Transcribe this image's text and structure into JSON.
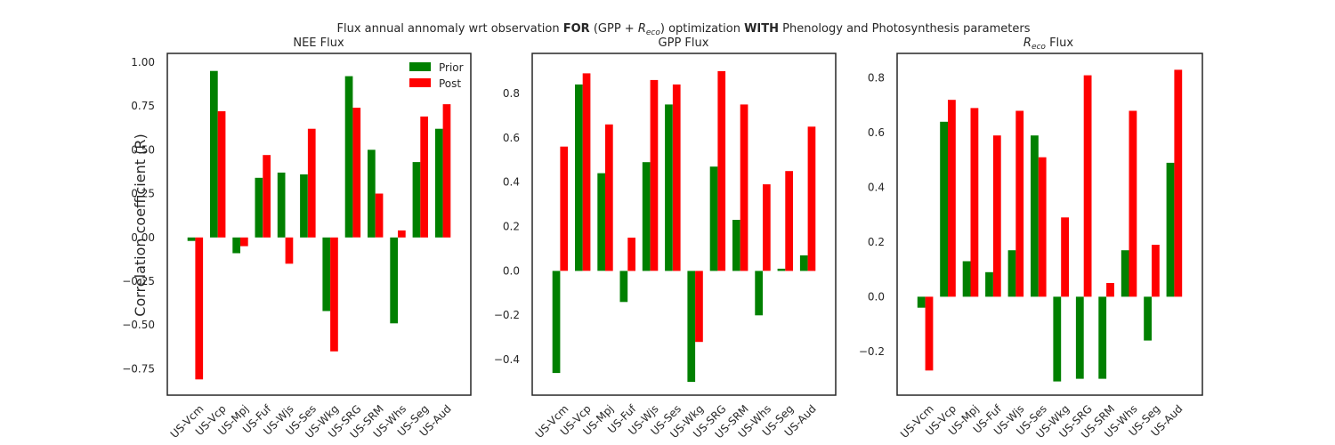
{
  "figure": {
    "suptitle_prefix": "Flux annual annomaly wrt observation ",
    "suptitle_bold1": "FOR",
    "suptitle_mid1": " (GPP + ",
    "suptitle_reco_base": "R",
    "suptitle_reco_sub": "eco",
    "suptitle_mid2": ") optimization ",
    "suptitle_bold2": "WITH",
    "suptitle_suffix": " Phenology and Photosynthesis parameters",
    "ylabel": "Correlation coefficient (R)"
  },
  "colors": {
    "prior": "#008000",
    "post": "#ff0000",
    "axes": "#262626"
  },
  "legend": {
    "placement": "top-right",
    "entries": [
      "Prior",
      "Post"
    ]
  },
  "chart_data": [
    {
      "type": "bar",
      "title": "NEE Flux",
      "categories": [
        "US-Vcm",
        "US-Vcp",
        "US-Mpj",
        "US-Fuf",
        "US-Wjs",
        "US-Ses",
        "US-Wkg",
        "US-SRG",
        "US-SRM",
        "US-Whs",
        "US-Seg",
        "US-Aud"
      ],
      "series": [
        {
          "name": "Prior",
          "values": [
            -0.02,
            0.95,
            -0.09,
            0.34,
            0.37,
            0.36,
            -0.42,
            0.92,
            0.5,
            -0.49,
            0.43,
            0.62
          ]
        },
        {
          "name": "Post",
          "values": [
            -0.81,
            0.72,
            -0.05,
            0.47,
            -0.15,
            0.62,
            -0.65,
            0.74,
            0.25,
            0.04,
            0.69,
            0.76
          ]
        }
      ],
      "ylim": [
        -0.9,
        1.05
      ],
      "yticks": [
        "1.00",
        "0.75",
        "0.50",
        "0.25",
        "0.00",
        "−0.25",
        "−0.50",
        "−0.75"
      ],
      "ytick_values": [
        1.0,
        0.75,
        0.5,
        0.25,
        0.0,
        -0.25,
        -0.5,
        -0.75
      ],
      "grid": false
    },
    {
      "type": "bar",
      "title": "GPP Flux",
      "categories": [
        "US-Vcm",
        "US-Vcp",
        "US-Mpj",
        "US-Fuf",
        "US-Wjs",
        "US-Ses",
        "US-Wkg",
        "US-SRG",
        "US-SRM",
        "US-Whs",
        "US-Seg",
        "US-Aud"
      ],
      "series": [
        {
          "name": "Prior",
          "values": [
            -0.46,
            0.84,
            0.44,
            -0.14,
            0.49,
            0.75,
            -0.5,
            0.47,
            0.23,
            -0.2,
            0.01,
            0.07
          ]
        },
        {
          "name": "Post",
          "values": [
            0.56,
            0.89,
            0.66,
            0.15,
            0.86,
            0.84,
            -0.32,
            0.9,
            0.75,
            0.39,
            0.45,
            0.65
          ]
        }
      ],
      "ylim": [
        -0.56,
        0.98
      ],
      "yticks": [
        "0.8",
        "0.6",
        "0.4",
        "0.2",
        "0.0",
        "−0.2",
        "−0.4"
      ],
      "ytick_values": [
        0.8,
        0.6,
        0.4,
        0.2,
        0.0,
        -0.2,
        -0.4
      ],
      "grid": false
    },
    {
      "type": "bar",
      "title_base": "R",
      "title_sub": "eco",
      "title_suffix": " Flux",
      "categories": [
        "US-Vcm",
        "US-Vcp",
        "US-Mpj",
        "US-Fuf",
        "US-Wjs",
        "US-Ses",
        "US-Wkg",
        "US-SRG",
        "US-SRM",
        "US-Whs",
        "US-Seg",
        "US-Aud"
      ],
      "series": [
        {
          "name": "Prior",
          "values": [
            -0.04,
            0.64,
            0.13,
            0.09,
            0.17,
            0.59,
            -0.31,
            -0.3,
            -0.3,
            0.17,
            -0.16,
            0.49
          ]
        },
        {
          "name": "Post",
          "values": [
            -0.27,
            0.72,
            0.69,
            0.59,
            0.68,
            0.51,
            0.29,
            0.81,
            0.05,
            0.68,
            0.19,
            0.83
          ]
        }
      ],
      "ylim": [
        -0.36,
        0.89
      ],
      "yticks": [
        "0.8",
        "0.6",
        "0.4",
        "0.2",
        "0.0",
        "−0.2"
      ],
      "ytick_values": [
        0.8,
        0.6,
        0.4,
        0.2,
        0.0,
        -0.2
      ],
      "grid": false
    }
  ]
}
